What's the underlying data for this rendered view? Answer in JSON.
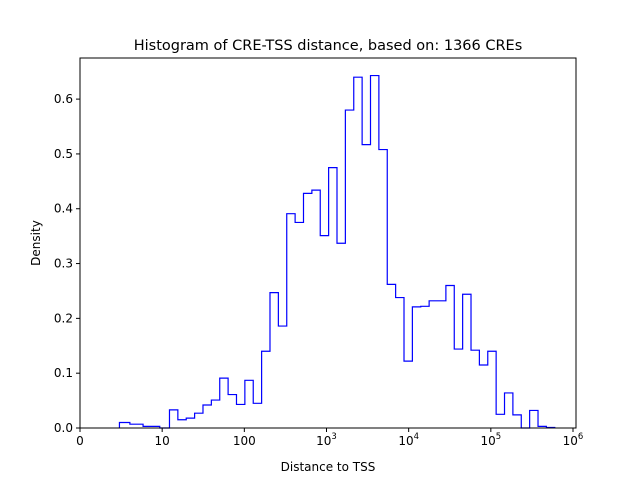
{
  "chart_data": {
    "type": "histogram",
    "title": "Histogram of CRE-TSS distance, based on: 1366 CREs",
    "xlabel": "Distance to TSS",
    "ylabel": "Density",
    "xscale": "symlog",
    "linthresh": 10,
    "xlim": [
      0,
      1000000
    ],
    "ylim": [
      0,
      0.675
    ],
    "grid": false,
    "line_color": "#0000ff",
    "x_ticks": [
      {
        "value": 0,
        "base": "0",
        "exp": ""
      },
      {
        "value": 10,
        "base": "10",
        "exp": ""
      },
      {
        "value": 100,
        "base": "100",
        "exp": ""
      },
      {
        "value": 1000,
        "base": "10",
        "exp": "3"
      },
      {
        "value": 10000,
        "base": "10",
        "exp": "4"
      },
      {
        "value": 100000,
        "base": "10",
        "exp": "5"
      },
      {
        "value": 1000000,
        "base": "10",
        "exp": "6"
      }
    ],
    "y_ticks": [
      {
        "value": 0,
        "label": "0.0"
      },
      {
        "value": 0.1,
        "label": "0.1"
      },
      {
        "value": 0.2,
        "label": "0.2"
      },
      {
        "value": 0.3,
        "label": "0.3"
      },
      {
        "value": 0.4,
        "label": "0.4"
      },
      {
        "value": 0.5,
        "label": "0.5"
      },
      {
        "value": 0.6,
        "label": "0.6"
      }
    ],
    "bin_range": [
      4.8,
      600000
    ],
    "bin_count": 50,
    "densities": [
      0.01,
      0.007,
      0.003,
      0.0,
      0.033,
      0.015,
      0.018,
      0.027,
      0.042,
      0.051,
      0.091,
      0.061,
      0.043,
      0.087,
      0.045,
      0.14,
      0.247,
      0.186,
      0.391,
      0.375,
      0.428,
      0.434,
      0.351,
      0.475,
      0.337,
      0.58,
      0.64,
      0.517,
      0.643,
      0.508,
      0.262,
      0.238,
      0.122,
      0.221,
      0.222,
      0.232,
      0.232,
      0.26,
      0.144,
      0.244,
      0.142,
      0.115,
      0.14,
      0.025,
      0.064,
      0.024,
      0.0,
      0.032,
      0.003,
      0.001
    ]
  }
}
